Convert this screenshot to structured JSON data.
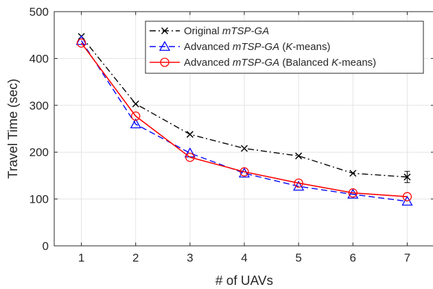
{
  "chart_data": {
    "type": "line",
    "title": "",
    "xlabel": "# of UAVs",
    "ylabel": "Travel Time (sec)",
    "xlim": [
      0.5,
      7.5
    ],
    "ylim": [
      0,
      500
    ],
    "x": [
      1,
      2,
      3,
      4,
      5,
      6,
      7
    ],
    "xticks": [
      "1",
      "2",
      "3",
      "4",
      "5",
      "6",
      "7"
    ],
    "yticks": [
      "0",
      "100",
      "200",
      "300",
      "400",
      "500"
    ],
    "grid": true,
    "legend_position": "top-right",
    "series": [
      {
        "name": "Original mTSP-GA",
        "name_parts": [
          [
            "Original ",
            false
          ],
          [
            "mTSP-GA",
            true
          ]
        ],
        "values": [
          447,
          303,
          238,
          208,
          192,
          155,
          147
        ],
        "error": [
          null,
          null,
          null,
          null,
          null,
          null,
          12
        ],
        "color": "#000000",
        "line_style": "dash-dot",
        "marker": "x"
      },
      {
        "name": "Advanced mTSP-GA (K-means)",
        "name_parts": [
          [
            "Advanced ",
            false
          ],
          [
            "mTSP-GA",
            true
          ],
          [
            " (",
            false
          ],
          [
            "K",
            true
          ],
          [
            "-means)",
            false
          ]
        ],
        "values": [
          438,
          260,
          198,
          155,
          127,
          110,
          95
        ],
        "color": "#0000ff",
        "line_style": "dashed",
        "marker": "triangle"
      },
      {
        "name": "Advanced mTSP-GA (Balanced K-means)",
        "name_parts": [
          [
            "Advanced ",
            false
          ],
          [
            "mTSP-GA",
            true
          ],
          [
            " (Balanced ",
            false
          ],
          [
            "K",
            true
          ],
          [
            "-means)",
            false
          ]
        ],
        "values": [
          433,
          277,
          189,
          158,
          134,
          113,
          105
        ],
        "color": "#ff0000",
        "line_style": "solid",
        "marker": "circle"
      }
    ]
  }
}
